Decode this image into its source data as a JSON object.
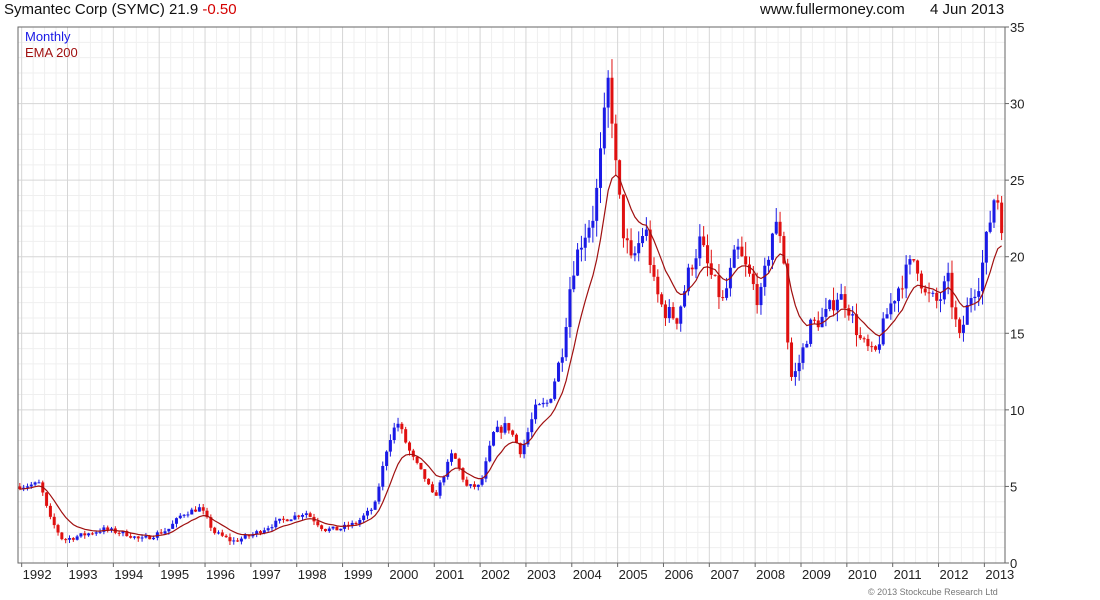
{
  "header": {
    "company": "Symantec Corp (SYMC)",
    "price": "21.9",
    "change": "-0.50",
    "source": "www.fullermoney.com",
    "date": "4 Jun 2013"
  },
  "legend": {
    "series": "Monthly",
    "indicator": "EMA 200"
  },
  "copyright": "© 2013 Stockcube Research Ltd",
  "colors": {
    "up": "#1a1ae6",
    "down": "#e01010",
    "ema": "#a01010",
    "grid": "#e2e2e2",
    "frame": "#666666"
  },
  "chart_data": {
    "type": "candlestick",
    "title": "Symantec Corp (SYMC)",
    "interval": "Monthly",
    "ylim": [
      0,
      35
    ],
    "y_ticks": [
      0,
      5,
      10,
      15,
      20,
      25,
      30,
      35
    ],
    "x_ticks": [
      "1992",
      "1993",
      "1994",
      "1995",
      "1996",
      "1997",
      "1998",
      "1999",
      "2000",
      "2001",
      "2002",
      "2003",
      "2004",
      "2005",
      "2006",
      "2007",
      "2008",
      "2009",
      "2010",
      "2011",
      "2012",
      "2013"
    ],
    "x_range": [
      1991.92,
      2013.45
    ],
    "y_axis_side": "right",
    "grid": true,
    "legend_position": "top-left",
    "close_anchors": [
      [
        1992.0,
        5.0
      ],
      [
        1992.4,
        5.2
      ],
      [
        1992.6,
        3.0
      ],
      [
        1992.9,
        1.5
      ],
      [
        1993.3,
        1.8
      ],
      [
        1993.8,
        2.2
      ],
      [
        1994.3,
        1.9
      ],
      [
        1994.6,
        1.5
      ],
      [
        1995.2,
        2.2
      ],
      [
        1995.5,
        3.2
      ],
      [
        1995.9,
        3.6
      ],
      [
        1996.2,
        2.0
      ],
      [
        1996.6,
        1.4
      ],
      [
        1997.0,
        1.8
      ],
      [
        1997.6,
        2.7
      ],
      [
        1998.2,
        3.3
      ],
      [
        1998.6,
        2.2
      ],
      [
        1998.9,
        2.2
      ],
      [
        1999.3,
        2.6
      ],
      [
        1999.7,
        3.7
      ],
      [
        2000.0,
        8.0
      ],
      [
        2000.2,
        9.2
      ],
      [
        2000.5,
        7.0
      ],
      [
        2000.8,
        5.5
      ],
      [
        2001.0,
        4.2
      ],
      [
        2001.4,
        7.2
      ],
      [
        2001.7,
        5.0
      ],
      [
        2002.0,
        5.0
      ],
      [
        2002.3,
        8.5
      ],
      [
        2002.6,
        9.0
      ],
      [
        2002.9,
        7.2
      ],
      [
        2003.2,
        10.0
      ],
      [
        2003.5,
        10.5
      ],
      [
        2003.8,
        14.0
      ],
      [
        2004.0,
        19.0
      ],
      [
        2004.2,
        21.0
      ],
      [
        2004.5,
        23.0
      ],
      [
        2004.7,
        28.5
      ],
      [
        2004.82,
        32.0
      ],
      [
        2004.95,
        26.0
      ],
      [
        2005.1,
        22.0
      ],
      [
        2005.3,
        19.5
      ],
      [
        2005.6,
        22.0
      ],
      [
        2005.8,
        18.0
      ],
      [
        2006.0,
        16.5
      ],
      [
        2006.3,
        16.0
      ],
      [
        2006.6,
        19.5
      ],
      [
        2006.8,
        21.0
      ],
      [
        2007.0,
        19.0
      ],
      [
        2007.3,
        17.0
      ],
      [
        2007.6,
        20.5
      ],
      [
        2007.9,
        18.5
      ],
      [
        2008.1,
        17.0
      ],
      [
        2008.4,
        22.0
      ],
      [
        2008.6,
        21.5
      ],
      [
        2008.75,
        12.0
      ],
      [
        2008.9,
        12.5
      ],
      [
        2009.2,
        15.5
      ],
      [
        2009.5,
        16.0
      ],
      [
        2009.8,
        17.5
      ],
      [
        2010.0,
        17.0
      ],
      [
        2010.3,
        14.5
      ],
      [
        2010.6,
        13.5
      ],
      [
        2010.9,
        16.5
      ],
      [
        2011.2,
        18.5
      ],
      [
        2011.5,
        20.0
      ],
      [
        2011.7,
        17.5
      ],
      [
        2012.0,
        17.0
      ],
      [
        2012.2,
        18.5
      ],
      [
        2012.45,
        14.5
      ],
      [
        2012.7,
        17.5
      ],
      [
        2012.9,
        18.5
      ],
      [
        2013.1,
        22.0
      ],
      [
        2013.25,
        24.5
      ],
      [
        2013.4,
        21.9
      ]
    ]
  }
}
